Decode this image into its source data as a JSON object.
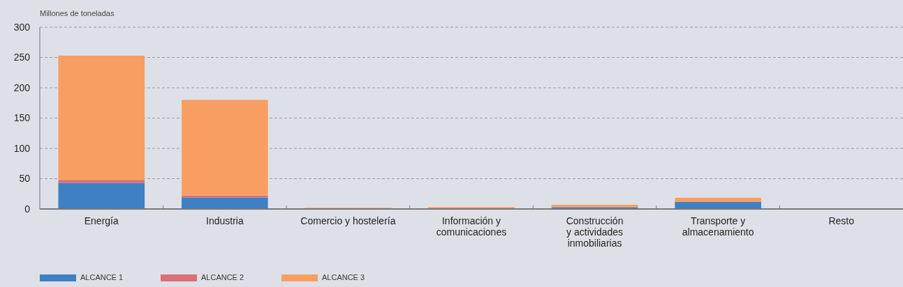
{
  "chart_data": {
    "type": "bar",
    "stacked": true,
    "ylabel": "Millones de toneladas",
    "categories": [
      "Energía",
      "Industria",
      "Comercio y hostelería",
      "Información y\ncomunicaciones",
      "Construcción\ny actividades\ninmobiliarias",
      "Transporte y\nalmacenamiento",
      "Resto"
    ],
    "series": [
      {
        "name": "ALCANCE 1",
        "color": "#3f7fc4",
        "values": [
          43,
          19,
          0,
          0,
          3,
          11.5,
          0
        ]
      },
      {
        "name": "ALCANCE 2",
        "color": "#d9707a",
        "values": [
          5,
          3,
          0,
          0,
          0,
          0,
          0
        ]
      },
      {
        "name": "ALCANCE 3",
        "color": "#f89e62",
        "values": [
          205,
          158,
          2,
          3,
          4,
          7,
          0
        ]
      }
    ],
    "ylim": [
      0,
      300
    ],
    "yticks": [
      0,
      50,
      100,
      150,
      200,
      250,
      300
    ],
    "grid": "y",
    "legend": "bottom left"
  }
}
